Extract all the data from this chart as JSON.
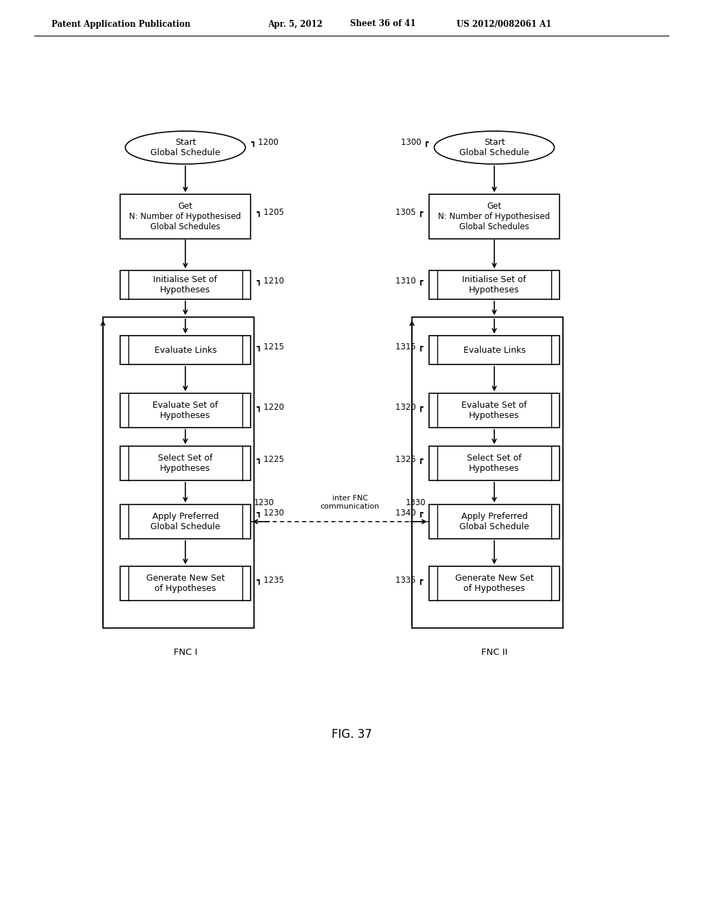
{
  "bg_color": "#ffffff",
  "header_left": "Patent Application Publication",
  "header_mid": "Apr. 5, 2012   Sheet 36 of 41",
  "header_right": "US 2012/0082061 A1",
  "fig_label": "FIG. 37",
  "fnc1_label": "FNC I",
  "fnc2_label": "FNC II",
  "left_start_label": "Start\nGlobal Schedule",
  "left_start_ref": "1200",
  "left_boxes": [
    {
      "label": "Get\nN: Number of Hypothesised\nGlobal Schedules",
      "ref": "1205"
    },
    {
      "label": "Initialise Set of\nHypotheses",
      "ref": "1210"
    },
    {
      "label": "Evaluate Links",
      "ref": "1215"
    },
    {
      "label": "Evaluate Set of\nHypotheses",
      "ref": "1220"
    },
    {
      "label": "Select Set of\nHypotheses",
      "ref": "1225"
    },
    {
      "label": "Apply Preferred\nGlobal Schedule",
      "ref": "1230"
    },
    {
      "label": "Generate New Set\nof Hypotheses",
      "ref": "1235"
    }
  ],
  "right_start_label": "Start\nGlobal Schedule",
  "right_start_ref": "1300",
  "right_boxes": [
    {
      "label": "Get\nN: Number of Hypothesised\nGlobal Schedules",
      "ref": "1305"
    },
    {
      "label": "Initialise Set of\nHypotheses",
      "ref": "1310"
    },
    {
      "label": "Evaluate Links",
      "ref": "1315"
    },
    {
      "label": "Evaluate Set of\nHypotheses",
      "ref": "1320"
    },
    {
      "label": "Select Set of\nHypotheses",
      "ref": "1325"
    },
    {
      "label": "Apply Preferred\nGlobal Schedule",
      "ref": "1340"
    },
    {
      "label": "Generate New Set\nof Hypotheses",
      "ref": "1335"
    }
  ],
  "inter_ref_left": "1230",
  "inter_ref_right": "1330",
  "inter_label": "inter FNC\ncommunication"
}
